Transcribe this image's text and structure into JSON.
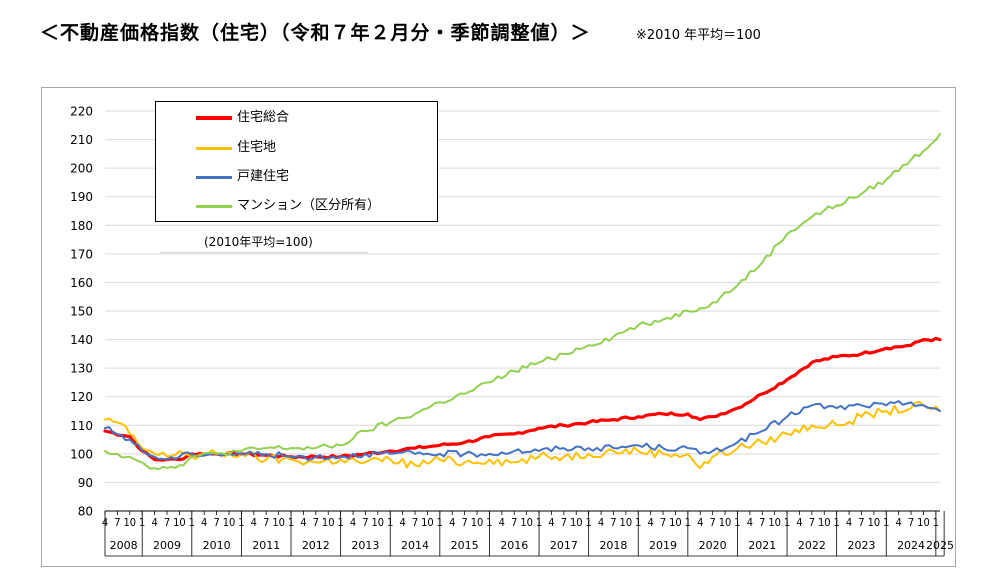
{
  "title": "＜不動産価格指数（住宅）（令和７年２月分・季節調整値）＞",
  "note": "※2010 年平均＝100",
  "chart_data": {
    "type": "line",
    "base_note": "(2010年平均=100)",
    "ylim": [
      80,
      220
    ],
    "yticks": [
      80,
      90,
      100,
      110,
      120,
      130,
      140,
      150,
      160,
      170,
      180,
      190,
      200,
      210,
      220
    ],
    "grid": true,
    "legend_position": "top-left",
    "start": "2008-04",
    "end": "2025-02",
    "year_labels": [
      "2008",
      "2009",
      "2010",
      "2011",
      "2012",
      "2013",
      "2014",
      "2015",
      "2016",
      "2017",
      "2018",
      "2019",
      "2020",
      "2021",
      "2022",
      "2023",
      "2024",
      "2025"
    ],
    "month_ticks": [
      "4",
      "7",
      "10",
      "1"
    ],
    "series": [
      {
        "name": "住宅総合",
        "color": "#ff0000",
        "width": 3.2,
        "points": [
          [
            "2008-04",
            108
          ],
          [
            "2008-10",
            106
          ],
          [
            "2009-01",
            101
          ],
          [
            "2009-04",
            98
          ],
          [
            "2009-07",
            98
          ],
          [
            "2009-10",
            98
          ],
          [
            "2010-01",
            100
          ],
          [
            "2010-07",
            100
          ],
          [
            "2011-01",
            100
          ],
          [
            "2011-07",
            99.5
          ],
          [
            "2012-01",
            99
          ],
          [
            "2012-07",
            99
          ],
          [
            "2013-01",
            99
          ],
          [
            "2013-07",
            100
          ],
          [
            "2014-01",
            101
          ],
          [
            "2014-07",
            102
          ],
          [
            "2015-01",
            103
          ],
          [
            "2015-07",
            104
          ],
          [
            "2016-01",
            106
          ],
          [
            "2016-07",
            107
          ],
          [
            "2017-01",
            109
          ],
          [
            "2017-07",
            110
          ],
          [
            "2018-01",
            111
          ],
          [
            "2018-07",
            112
          ],
          [
            "2019-01",
            113
          ],
          [
            "2019-07",
            114
          ],
          [
            "2020-01",
            114
          ],
          [
            "2020-04",
            112
          ],
          [
            "2020-07",
            113
          ],
          [
            "2021-01",
            116
          ],
          [
            "2021-07",
            121
          ],
          [
            "2022-01",
            126
          ],
          [
            "2022-07",
            132
          ],
          [
            "2023-01",
            134
          ],
          [
            "2023-07",
            135
          ],
          [
            "2024-01",
            137
          ],
          [
            "2024-07",
            138
          ],
          [
            "2024-10",
            140
          ],
          [
            "2025-02",
            140
          ]
        ]
      },
      {
        "name": "住宅地",
        "color": "#ffc000",
        "width": 2,
        "points": [
          [
            "2008-04",
            112
          ],
          [
            "2008-07",
            111
          ],
          [
            "2008-10",
            107
          ],
          [
            "2009-01",
            102
          ],
          [
            "2009-04",
            100
          ],
          [
            "2009-07",
            99
          ],
          [
            "2009-10",
            101
          ],
          [
            "2010-01",
            99
          ],
          [
            "2010-07",
            100
          ],
          [
            "2011-01",
            100
          ],
          [
            "2011-07",
            98
          ],
          [
            "2012-01",
            98
          ],
          [
            "2012-07",
            97
          ],
          [
            "2013-01",
            98
          ],
          [
            "2013-07",
            97
          ],
          [
            "2014-01",
            98
          ],
          [
            "2014-07",
            96
          ],
          [
            "2015-01",
            98
          ],
          [
            "2015-07",
            97
          ],
          [
            "2016-01",
            98
          ],
          [
            "2016-07",
            97
          ],
          [
            "2017-01",
            99
          ],
          [
            "2017-07",
            99
          ],
          [
            "2018-01",
            100
          ],
          [
            "2018-07",
            101
          ],
          [
            "2019-01",
            101
          ],
          [
            "2019-07",
            100
          ],
          [
            "2020-01",
            100
          ],
          [
            "2020-04",
            95
          ],
          [
            "2020-07",
            99
          ],
          [
            "2021-01",
            102
          ],
          [
            "2021-07",
            104
          ],
          [
            "2022-01",
            107
          ],
          [
            "2022-07",
            110
          ],
          [
            "2023-01",
            110
          ],
          [
            "2023-07",
            113
          ],
          [
            "2024-01",
            115
          ],
          [
            "2024-07",
            116
          ],
          [
            "2024-10",
            117
          ],
          [
            "2025-02",
            115
          ]
        ]
      },
      {
        "name": "戸建住宅",
        "color": "#4472c4",
        "width": 2,
        "points": [
          [
            "2008-04",
            109
          ],
          [
            "2008-10",
            105
          ],
          [
            "2009-01",
            101
          ],
          [
            "2009-04",
            99
          ],
          [
            "2009-07",
            98
          ],
          [
            "2009-10",
            99
          ],
          [
            "2010-01",
            100
          ],
          [
            "2010-07",
            100
          ],
          [
            "2011-01",
            100
          ],
          [
            "2011-07",
            100
          ],
          [
            "2012-01",
            99
          ],
          [
            "2012-07",
            99
          ],
          [
            "2013-01",
            99
          ],
          [
            "2013-07",
            100
          ],
          [
            "2014-01",
            100
          ],
          [
            "2014-07",
            100
          ],
          [
            "2015-01",
            100
          ],
          [
            "2015-07",
            100
          ],
          [
            "2016-01",
            100
          ],
          [
            "2016-07",
            101
          ],
          [
            "2017-01",
            101
          ],
          [
            "2017-07",
            102
          ],
          [
            "2018-01",
            102
          ],
          [
            "2018-07",
            102
          ],
          [
            "2019-01",
            103
          ],
          [
            "2019-07",
            102
          ],
          [
            "2020-01",
            102
          ],
          [
            "2020-04",
            100
          ],
          [
            "2020-07",
            101
          ],
          [
            "2021-01",
            104
          ],
          [
            "2021-07",
            108
          ],
          [
            "2022-01",
            113
          ],
          [
            "2022-07",
            117
          ],
          [
            "2023-01",
            116
          ],
          [
            "2023-07",
            117
          ],
          [
            "2024-01",
            117
          ],
          [
            "2024-07",
            118
          ],
          [
            "2024-10",
            117
          ],
          [
            "2025-02",
            115
          ]
        ]
      },
      {
        "name": "マンション（区分所有）",
        "color": "#92d050",
        "width": 2,
        "points": [
          [
            "2008-04",
            101
          ],
          [
            "2008-07",
            100
          ],
          [
            "2008-10",
            99
          ],
          [
            "2009-01",
            97
          ],
          [
            "2009-04",
            95
          ],
          [
            "2009-07",
            95
          ],
          [
            "2009-10",
            96
          ],
          [
            "2010-01",
            99
          ],
          [
            "2010-07",
            100
          ],
          [
            "2011-01",
            101
          ],
          [
            "2011-07",
            102
          ],
          [
            "2012-01",
            102
          ],
          [
            "2012-07",
            102
          ],
          [
            "2013-01",
            103
          ],
          [
            "2013-07",
            108
          ],
          [
            "2014-01",
            111
          ],
          [
            "2014-07",
            114
          ],
          [
            "2015-01",
            118
          ],
          [
            "2015-07",
            121
          ],
          [
            "2016-01",
            125
          ],
          [
            "2016-07",
            129
          ],
          [
            "2017-01",
            132
          ],
          [
            "2017-07",
            135
          ],
          [
            "2018-01",
            138
          ],
          [
            "2018-07",
            141
          ],
          [
            "2019-01",
            145
          ],
          [
            "2019-07",
            147
          ],
          [
            "2020-01",
            150
          ],
          [
            "2020-04",
            151
          ],
          [
            "2020-07",
            153
          ],
          [
            "2021-01",
            159
          ],
          [
            "2021-07",
            167
          ],
          [
            "2022-01",
            177
          ],
          [
            "2022-07",
            183
          ],
          [
            "2023-01",
            187
          ],
          [
            "2023-07",
            191
          ],
          [
            "2024-01",
            196
          ],
          [
            "2024-07",
            203
          ],
          [
            "2024-10",
            206
          ],
          [
            "2025-02",
            212
          ]
        ]
      }
    ]
  }
}
